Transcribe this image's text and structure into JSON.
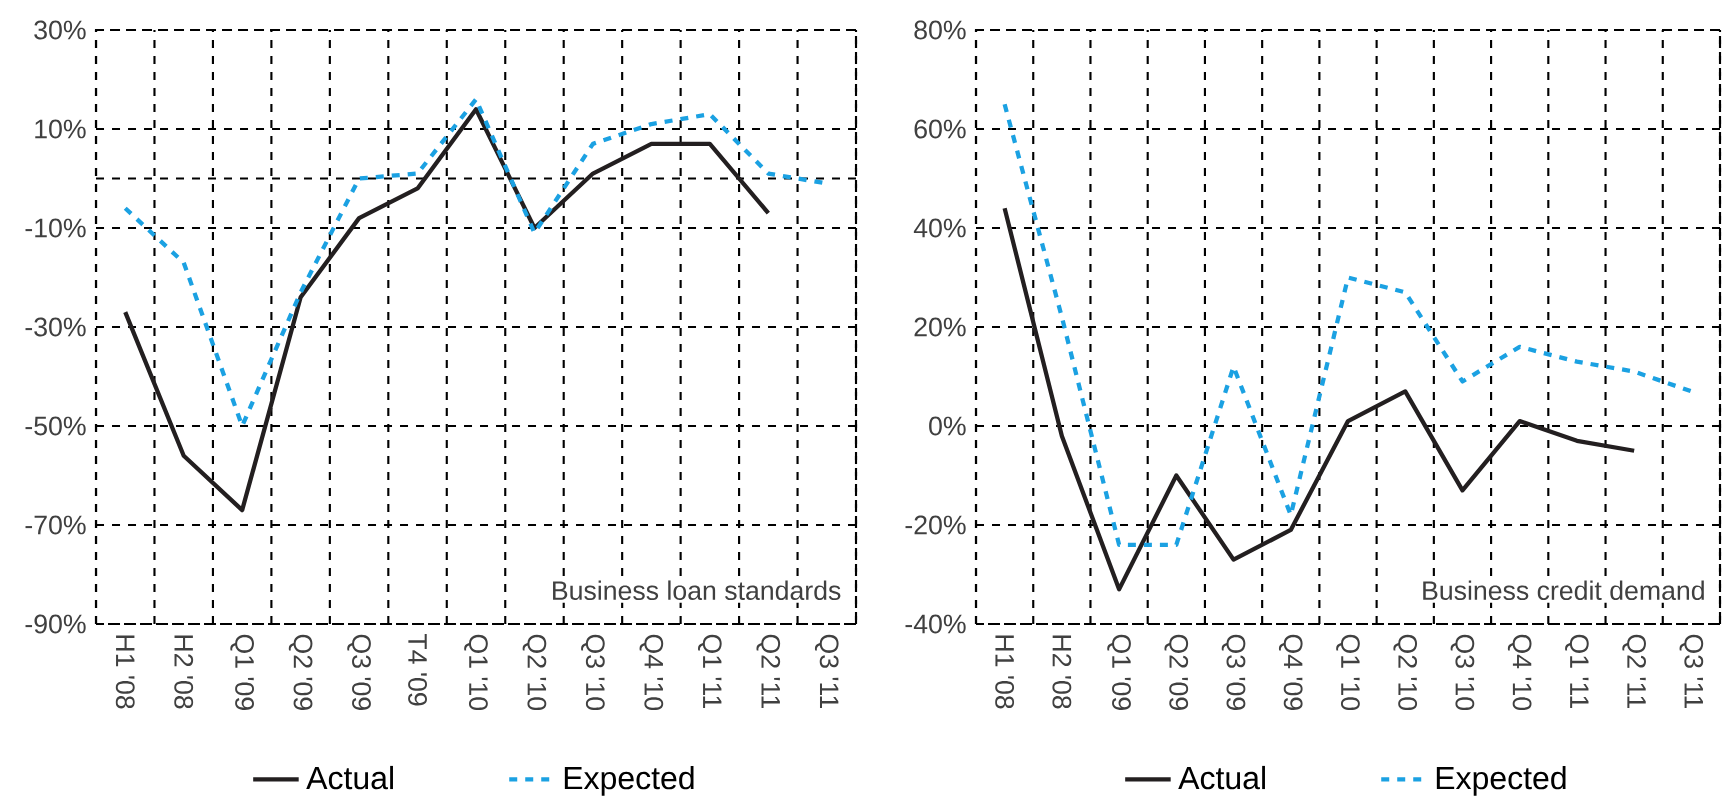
{
  "chart_data": [
    {
      "type": "line",
      "categories": [
        "H1 '08",
        "H2 '08",
        "Q1 '09",
        "Q2 '09",
        "Q3 '09",
        "T4 '09",
        "Q1 '10",
        "Q2 '10",
        "Q3 '10",
        "Q4 '10",
        "Q1 '11",
        "Q2 '11",
        "Q3 '11"
      ],
      "series": [
        {
          "name": "Actual",
          "color": "#231f20",
          "line_style": "solid",
          "values": [
            -27,
            -56,
            -67,
            -24,
            -8,
            -2,
            14,
            -10,
            1,
            7,
            7,
            -7,
            null
          ]
        },
        {
          "name": "Expected",
          "color": "#1ba1e2",
          "line_style": "dashed",
          "values": [
            -6,
            -17,
            -50,
            -23,
            0,
            1,
            16,
            -11,
            7,
            11,
            13,
            1,
            -1
          ]
        }
      ],
      "ylim": [
        -90,
        30
      ],
      "yticks": [
        {
          "value": -90,
          "label": "-90%"
        },
        {
          "value": -70,
          "label": "-70%"
        },
        {
          "value": -50,
          "label": "-50%"
        },
        {
          "value": -30,
          "label": "-30%"
        },
        {
          "value": -10,
          "label": "-10%"
        },
        {
          "value": 10,
          "label": "10%"
        },
        {
          "value": 30,
          "label": "30%"
        }
      ],
      "ref_lines": [
        {
          "axis": "y",
          "value": 0
        }
      ],
      "annotations": [
        "Business loan standards"
      ],
      "grid": true,
      "legend": "bottom",
      "marker": "none"
    },
    {
      "type": "line",
      "categories": [
        "H1 '08",
        "H2 '08",
        "Q1 '09",
        "Q2 '09",
        "Q3 '09",
        "Q4 '09",
        "Q1 '10",
        "Q2 '10",
        "Q3 '10",
        "Q4 '10",
        "Q1 '11",
        "Q2 '11",
        "Q3 '11"
      ],
      "series": [
        {
          "name": "Actual",
          "color": "#231f20",
          "line_style": "solid",
          "values": [
            44,
            -2,
            -33,
            -10,
            -27,
            -21,
            1,
            7,
            -13,
            1,
            -3,
            -5,
            null
          ]
        },
        {
          "name": "Expected",
          "color": "#1ba1e2",
          "line_style": "dashed",
          "values": [
            65,
            22,
            -24,
            -24,
            12,
            -18,
            30,
            27,
            9,
            16,
            13,
            11,
            7
          ]
        }
      ],
      "ylim": [
        -40,
        80
      ],
      "yticks": [
        {
          "value": -40,
          "label": "-40%"
        },
        {
          "value": -20,
          "label": "-20%"
        },
        {
          "value": 0,
          "label": "0%"
        },
        {
          "value": 20,
          "label": "20%"
        },
        {
          "value": 40,
          "label": "40%"
        },
        {
          "value": 60,
          "label": "60%"
        },
        {
          "value": 80,
          "label": "80%"
        }
      ],
      "annotations": [
        "Business credit demand"
      ],
      "grid": true,
      "legend": "bottom",
      "marker": "none"
    }
  ]
}
